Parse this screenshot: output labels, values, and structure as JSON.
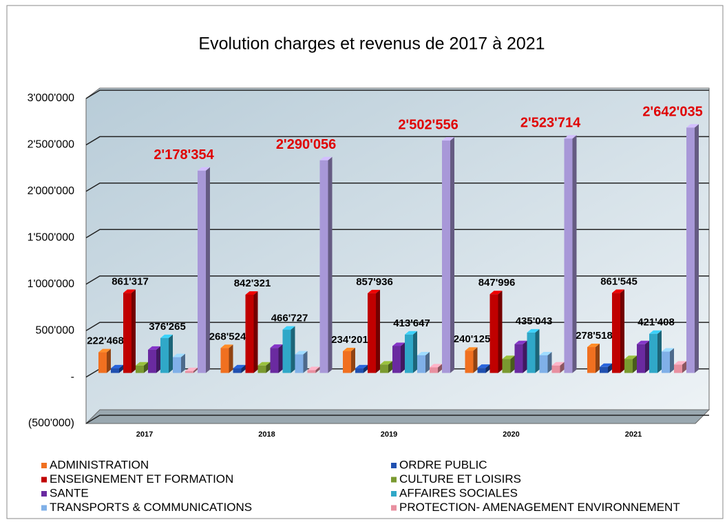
{
  "chart_data": {
    "type": "bar3d",
    "title": "Evolution charges et revenus de 2017 à 2021",
    "categories": [
      "2017",
      "2018",
      "2019",
      "2020",
      "2021"
    ],
    "ylim": [
      -500000,
      3000000
    ],
    "yticks": [
      {
        "value": -500000,
        "label": "(500'000)"
      },
      {
        "value": 0,
        "label": "-"
      },
      {
        "value": 500000,
        "label": "500'000"
      },
      {
        "value": 1000000,
        "label": "1'000'000"
      },
      {
        "value": 1500000,
        "label": "1'500'000"
      },
      {
        "value": 2000000,
        "label": "2'000'000"
      },
      {
        "value": 2500000,
        "label": "2'500'000"
      },
      {
        "value": 3000000,
        "label": "3'000'000"
      }
    ],
    "grid": true,
    "series": [
      {
        "name": "ADMINISTRATION",
        "color": "#f07020",
        "values": [
          222468,
          268524,
          234201,
          240125,
          278518
        ],
        "value_labels": [
          "222'468",
          "268'524",
          "234'201",
          "240'125",
          "278'518"
        ]
      },
      {
        "name": "ORDRE PUBLIC",
        "color": "#2050b0",
        "values": [
          50000,
          50000,
          50000,
          55000,
          65000
        ]
      },
      {
        "name": "ENSEIGNEMENT ET FORMATION",
        "color": "#c00000",
        "values": [
          861317,
          842321,
          857936,
          847996,
          861545
        ],
        "value_labels": [
          "861'317",
          "842'321",
          "857'936",
          "847'996",
          "861'545"
        ]
      },
      {
        "name": "CULTURE ET LOISIRS",
        "color": "#7a9a30",
        "values": [
          80000,
          80000,
          90000,
          150000,
          150000
        ]
      },
      {
        "name": "SANTE",
        "color": "#6a2aa0",
        "values": [
          250000,
          270000,
          290000,
          310000,
          310000
        ]
      },
      {
        "name": "AFFAIRES SOCIALES",
        "color": "#30a8c8",
        "values": [
          376265,
          466727,
          413647,
          435043,
          421408
        ],
        "value_labels": [
          "376'265",
          "466'727",
          "413'647",
          "435'043",
          "421'408"
        ]
      },
      {
        "name": "TRANSPORTS & COMMUNICATIONS",
        "color": "#80b0e8",
        "values": [
          170000,
          200000,
          190000,
          190000,
          230000
        ]
      },
      {
        "name": "PROTECTION- AMENAGEMENT ENVIRONNEMENT",
        "color": "#e890a0",
        "values": [
          20000,
          30000,
          60000,
          80000,
          90000
        ]
      },
      {
        "color": "#a898d8",
        "values": [
          2178354,
          2290056,
          2502556,
          2523714,
          2642035
        ],
        "value_labels": [
          "2'178'354",
          "2'290'056",
          "2'502'556",
          "2'523'714",
          "2'642'035"
        ],
        "label_color": "#e00000"
      }
    ]
  }
}
